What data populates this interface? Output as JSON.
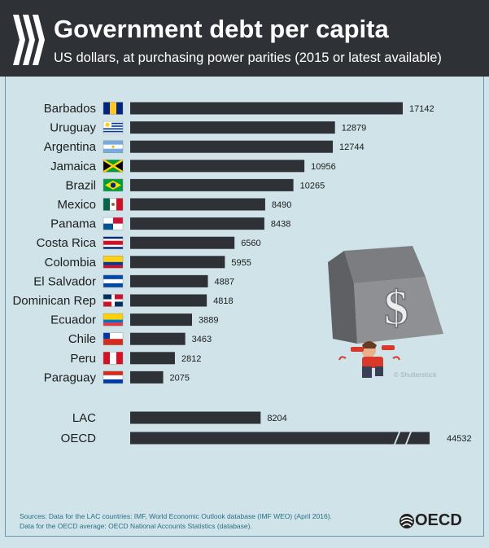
{
  "header": {
    "title": "Government debt per capita",
    "subtitle": "US dollars, at purchasing power parities (2015 or latest available)"
  },
  "chart_data": {
    "type": "bar",
    "orientation": "horizontal",
    "title": "Government debt per capita",
    "subtitle": "US dollars, at purchasing power parities (2015 or latest available)",
    "xlabel": "",
    "ylabel": "",
    "categories": [
      "Barbados",
      "Uruguay",
      "Argentina",
      "Jamaica",
      "Brazil",
      "Mexico",
      "Panama",
      "Costa Rica",
      "Colombia",
      "El Salvador",
      "Dominican Rep",
      "Ecuador",
      "Chile",
      "Peru",
      "Paraguay"
    ],
    "values": [
      17142,
      12879,
      12744,
      10956,
      10265,
      8490,
      8438,
      6560,
      5955,
      4887,
      4818,
      3889,
      3463,
      2812,
      2075
    ],
    "value_labels": [
      "17142",
      "12879",
      "12744",
      "10956",
      "10265",
      "8490",
      "8438",
      "6560",
      "5955",
      "4887",
      "4818",
      "3889",
      "3463",
      "2812",
      "2075"
    ],
    "aggregates": [
      {
        "name": "LAC",
        "value": 8204,
        "label": "8204",
        "truncated": false
      },
      {
        "name": "OECD",
        "value": 44532,
        "label": "44532",
        "truncated": true
      }
    ],
    "xlim": [
      0,
      17142
    ],
    "bar_color": "#2e3136"
  },
  "illustration": {
    "credit": "© Shutterstock"
  },
  "footer": {
    "source_line1": "Sources: Data for the LAC countries: IMF, World Economic Outlook database (IMF WEO) (April 2016).",
    "source_line2": "Data for the OECD average: OECD National Accounts Statistics (database).",
    "logo_text": "OECD"
  },
  "colors": {
    "header_bg": "#2e3136",
    "panel_bg": "#cfe3e9",
    "bar": "#2e3136",
    "source_text": "#2a6f86"
  }
}
